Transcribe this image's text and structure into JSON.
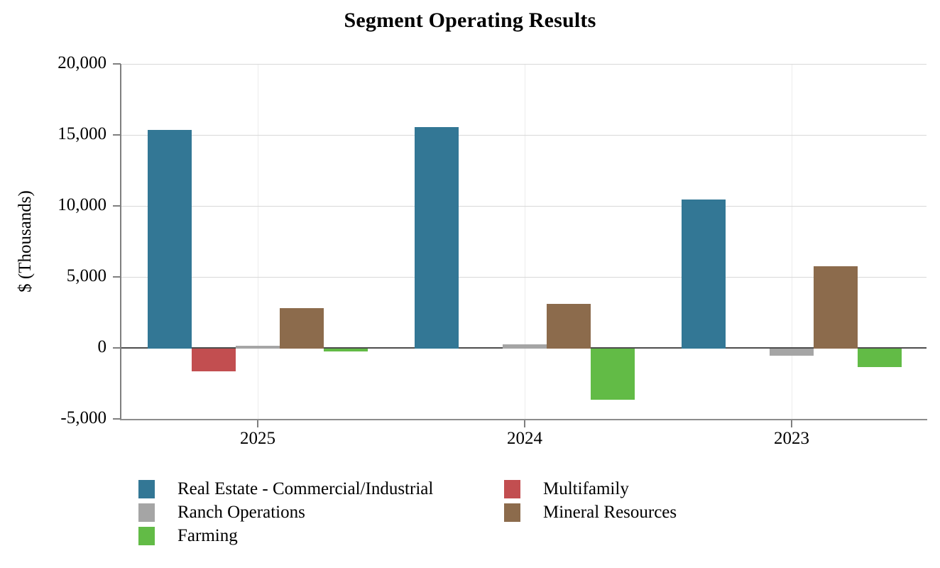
{
  "chart_data": {
    "type": "bar",
    "title": "Segment Operating Results",
    "ylabel": "$ (Thousands)",
    "xlabel": "",
    "categories": [
      "2025",
      "2024",
      "2023"
    ],
    "series": [
      {
        "name": "Real Estate - Commercial/Industrial",
        "color": "#337795",
        "values": [
          15350,
          15550,
          10450
        ]
      },
      {
        "name": "Multifamily",
        "color": "#C24E50",
        "values": [
          -1650,
          0,
          0
        ]
      },
      {
        "name": "Ranch Operations",
        "color": "#A5A5A5",
        "values": [
          150,
          250,
          -550
        ]
      },
      {
        "name": "Mineral Resources",
        "color": "#8C6B4C",
        "values": [
          2800,
          3100,
          5750
        ]
      },
      {
        "name": "Farming",
        "color": "#62BB46",
        "values": [
          -250,
          -3650,
          -1350
        ]
      }
    ],
    "ylim": [
      -5000,
      20000
    ],
    "yticks": [
      20000,
      15000,
      10000,
      5000,
      0,
      -5000
    ],
    "ytick_labels": [
      "20,000",
      "15,000",
      "10,000",
      "5,000",
      "0",
      "-5,000"
    ],
    "grid": "horizontal gridlines plus light vertical gridline at each category center; dark zero line",
    "legend_position": "bottom, two columns",
    "colors": {
      "axis": "#7F7F7F",
      "gridline": "#D9D9D9",
      "vertical_gridline": "#ECECEC",
      "zero_line": "#4D4D4D",
      "background": "#FFFFFF",
      "text": "#000000"
    }
  }
}
